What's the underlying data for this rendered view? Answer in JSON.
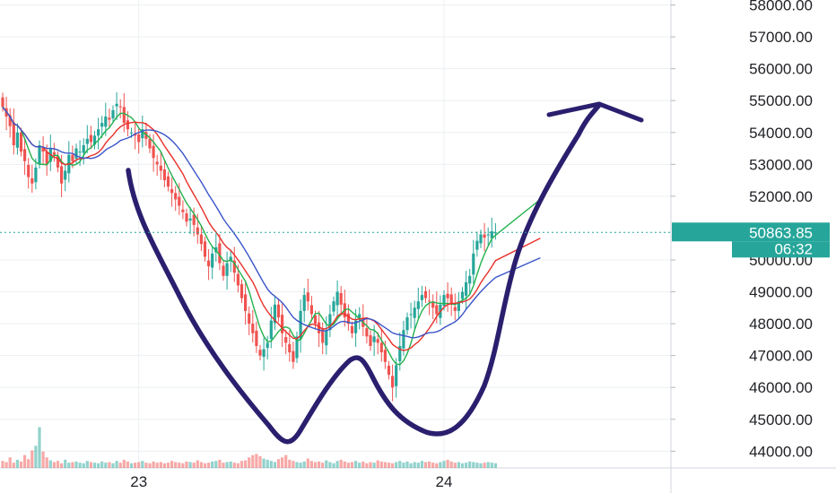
{
  "chart_data": {
    "type": "candlestick",
    "y_axis": {
      "ticks": [
        "58000.00",
        "57000.00",
        "56000.00",
        "55000.00",
        "54000.00",
        "53000.00",
        "52000.00",
        "50000.00",
        "49000.00",
        "48000.00",
        "47000.00",
        "46000.00",
        "45000.00",
        "44000.00"
      ],
      "tick_values": [
        58000,
        57000,
        56000,
        55000,
        54000,
        53000,
        52000,
        50000,
        49000,
        48000,
        47000,
        46000,
        45000,
        44000
      ],
      "range": [
        43700,
        58100
      ]
    },
    "x_axis": {
      "ticks": [
        "23",
        "24"
      ],
      "tick_index": [
        37,
        120
      ]
    },
    "current_price": {
      "label": "50863.85",
      "value": 50863.85,
      "countdown": "06:32"
    },
    "colors": {
      "up": "#26a69a",
      "down": "#ef5350",
      "ma_fast": "#22b14c",
      "ma_mid": "#e8302a",
      "ma_slow": "#3a55c8",
      "drawing": "#2a1f6e",
      "price_tag": "#26a69a"
    },
    "candles_close": [
      54800,
      54500,
      54200,
      53600,
      54000,
      53400,
      53100,
      52600,
      52400,
      52900,
      53600,
      53400,
      53000,
      53500,
      53300,
      52900,
      52400,
      52800,
      53300,
      53100,
      53500,
      53400,
      53600,
      53800,
      53700,
      53900,
      54100,
      54300,
      54500,
      54400,
      54700,
      54900,
      54800,
      54300,
      54100,
      54000,
      53900,
      53700,
      54100,
      53800,
      53500,
      53200,
      53000,
      52800,
      52500,
      52300,
      52100,
      51900,
      51700,
      51500,
      51200,
      51300,
      51100,
      50800,
      50500,
      50100,
      49800,
      50200,
      50400,
      49900,
      49500,
      49900,
      50100,
      49600,
      49200,
      48800,
      48400,
      48000,
      47700,
      47300,
      47000,
      47200,
      47400,
      48100,
      48600,
      48200,
      47700,
      47400,
      47100,
      46800,
      47600,
      48400,
      48900,
      48700,
      48300,
      48000,
      47700,
      47400,
      47800,
      48300,
      48700,
      49000,
      48600,
      48200,
      48000,
      47700,
      48100,
      48300,
      47900,
      47600,
      47300,
      47600,
      47400,
      47100,
      46800,
      46400,
      46000,
      46700,
      47300,
      47800,
      48200,
      48300,
      48500,
      48700,
      48900,
      48800,
      48700,
      48500,
      48300,
      48600,
      48900,
      48800,
      48600,
      48400,
      48700,
      49000,
      49300,
      49500,
      50200,
      50600,
      50800,
      50700,
      50800,
      50900,
      50863.85
    ],
    "volumes": [
      12,
      10,
      18,
      9,
      14,
      11,
      22,
      15,
      30,
      38,
      70,
      28,
      18,
      13,
      10,
      12,
      8,
      14,
      9,
      10,
      11,
      9,
      8,
      12,
      10,
      9,
      8,
      11,
      9,
      10,
      8,
      12,
      9,
      14,
      11,
      8,
      9,
      10,
      12,
      9,
      8,
      11,
      9,
      10,
      8,
      9,
      12,
      10,
      9,
      8,
      11,
      10,
      9,
      13,
      10,
      8,
      9,
      11,
      12,
      14,
      9,
      10,
      11,
      9,
      8,
      12,
      13,
      18,
      22,
      24,
      20,
      16,
      14,
      12,
      10,
      15,
      18,
      22,
      14,
      12,
      10,
      9,
      11,
      16,
      12,
      10,
      11,
      9,
      13,
      10,
      8,
      12,
      14,
      11,
      9,
      10,
      12,
      9,
      11,
      8,
      10,
      9,
      13,
      11,
      10,
      9,
      8,
      10,
      12,
      9,
      11,
      8,
      10,
      9,
      12,
      10,
      11,
      9,
      8,
      10,
      12,
      14,
      11,
      9,
      10,
      8,
      9,
      11,
      10,
      9,
      8,
      9,
      10,
      9,
      8
    ]
  }
}
